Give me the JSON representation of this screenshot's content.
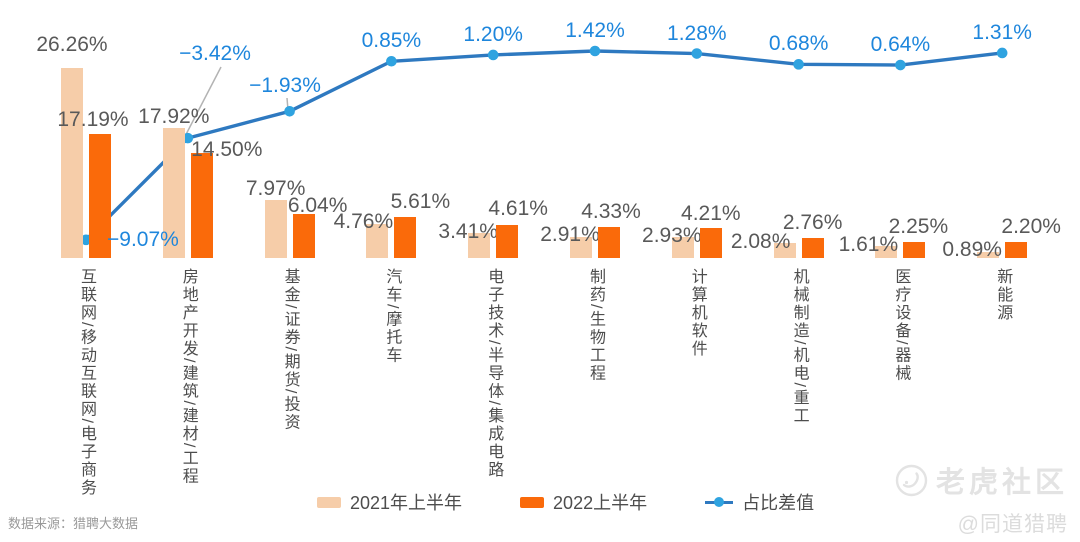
{
  "chart_data": {
    "type": "bar+line",
    "title": "",
    "categories": [
      "互联网/移动互联网/电子商务",
      "房地产开发/建筑/建材/工程",
      "基金/证券/期货/投资",
      "汽车/摩托车",
      "电子技术/半导体/集成电路",
      "制药/生物工程",
      "计算机软件",
      "机械制造/机电/重工",
      "医疗设备/器械",
      "新能源"
    ],
    "series": [
      {
        "name": "2021年上半年",
        "type": "bar",
        "color": "#f6cda9",
        "values": [
          26.26,
          17.92,
          7.97,
          4.76,
          3.41,
          2.91,
          2.93,
          2.08,
          1.61,
          0.89
        ]
      },
      {
        "name": "2022上半年",
        "type": "bar",
        "color": "#fa6a0a",
        "values": [
          17.19,
          14.5,
          6.04,
          5.61,
          4.61,
          4.33,
          4.21,
          2.76,
          2.25,
          2.2
        ]
      },
      {
        "name": "占比差值",
        "type": "line",
        "color": "#2e79c0",
        "marker_color": "#2fa3e0",
        "label_color": "#1e86dc",
        "values": [
          -9.07,
          -3.42,
          -1.93,
          0.85,
          1.2,
          1.42,
          1.28,
          0.68,
          0.64,
          1.31
        ]
      }
    ],
    "value_suffix": "%",
    "value_label_decimals": 2,
    "bar_label_color": "#595959",
    "legend_position": "bottom",
    "grid": false,
    "axes_visible": false
  },
  "source_note": "数据来源：猎聘大数据",
  "watermark": {
    "brand": "老虎社区",
    "handle": "@同道猎聘"
  }
}
